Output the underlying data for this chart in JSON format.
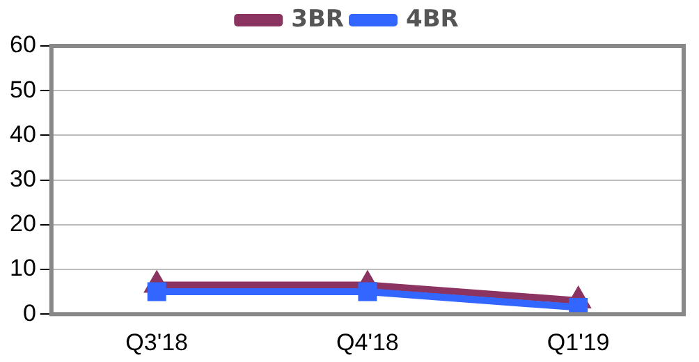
{
  "chart_data": {
    "type": "line",
    "categories": [
      "Q3'18",
      "Q4'18",
      "Q1'19"
    ],
    "series": [
      {
        "name": "3BR",
        "color": "#8b3462",
        "values": [
          6.5,
          6.5,
          3
        ],
        "marker": "triangle"
      },
      {
        "name": "4BR",
        "color": "#3366ff",
        "values": [
          5,
          5,
          1.5
        ],
        "marker": "square"
      }
    ],
    "ylim": [
      0,
      60
    ],
    "yticks": [
      0,
      10,
      20,
      30,
      40,
      50,
      60
    ],
    "grid": "y",
    "legend": "top"
  }
}
